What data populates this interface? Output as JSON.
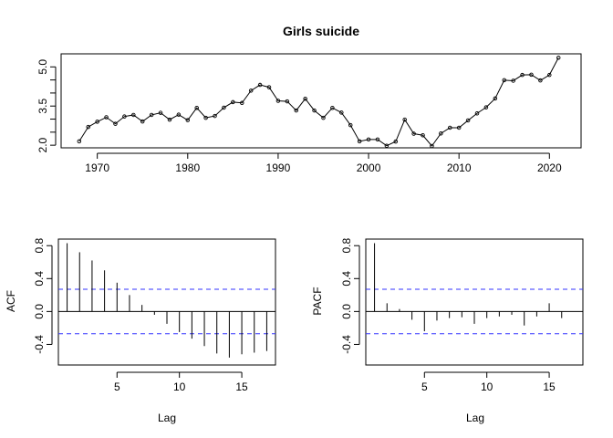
{
  "chart_data": [
    {
      "type": "line",
      "title": "Girls suicide",
      "xlabel": "",
      "ylabel": "",
      "xlim": [
        1966,
        2023.5
      ],
      "ylim": [
        1.9,
        5.5
      ],
      "xticks": [
        1970,
        1980,
        1990,
        2000,
        2010,
        2020
      ],
      "yticks_labeled": [
        2.0,
        3.5,
        5.0
      ],
      "yticks_minor": [
        2.5,
        3.0,
        4.0,
        4.5
      ],
      "x": [
        1968,
        1969,
        1970,
        1971,
        1972,
        1973,
        1974,
        1975,
        1976,
        1977,
        1978,
        1979,
        1980,
        1981,
        1982,
        1983,
        1984,
        1985,
        1986,
        1987,
        1988,
        1989,
        1990,
        1991,
        1992,
        1993,
        1994,
        1995,
        1996,
        1997,
        1998,
        1999,
        2000,
        2001,
        2002,
        2003,
        2004,
        2005,
        2006,
        2007,
        2008,
        2009,
        2010,
        2011,
        2012,
        2013,
        2014,
        2015,
        2016,
        2017,
        2018,
        2019,
        2020,
        2021
      ],
      "values": [
        2.15,
        2.7,
        2.9,
        3.07,
        2.82,
        3.1,
        3.16,
        2.91,
        3.16,
        3.24,
        2.98,
        3.17,
        2.96,
        3.43,
        3.05,
        3.12,
        3.44,
        3.65,
        3.62,
        4.09,
        4.31,
        4.22,
        3.7,
        3.68,
        3.33,
        3.78,
        3.33,
        3.05,
        3.43,
        3.25,
        2.77,
        2.15,
        2.22,
        2.22,
        1.98,
        2.14,
        2.98,
        2.44,
        2.38,
        1.97,
        2.45,
        2.67,
        2.67,
        2.95,
        3.22,
        3.45,
        3.79,
        4.49,
        4.47,
        4.69,
        4.7,
        4.48,
        4.69,
        5.35
      ],
      "grid": false
    },
    {
      "type": "bar",
      "title": "",
      "xlabel": "Lag",
      "ylabel": "ACF",
      "xlim": [
        0.3,
        17.7
      ],
      "ylim": [
        -0.65,
        0.88
      ],
      "xticks": [
        5,
        10,
        15
      ],
      "yticks": [
        -0.4,
        0.0,
        0.4,
        0.8
      ],
      "lags": [
        1,
        2,
        3,
        4,
        5,
        6,
        7,
        8,
        9,
        10,
        11,
        12,
        13,
        14,
        15,
        16,
        17
      ],
      "values": [
        0.83,
        0.72,
        0.62,
        0.5,
        0.35,
        0.2,
        0.08,
        -0.04,
        -0.15,
        -0.25,
        -0.33,
        -0.42,
        -0.51,
        -0.56,
        -0.52,
        -0.5,
        -0.48
      ],
      "ci": 0.27
    },
    {
      "type": "bar",
      "title": "",
      "xlabel": "Lag",
      "ylabel": "PACF",
      "xlim": [
        0.3,
        17.7
      ],
      "ylim": [
        -0.65,
        0.88
      ],
      "xticks": [
        5,
        10,
        15
      ],
      "yticks": [
        -0.4,
        0.0,
        0.4,
        0.8
      ],
      "lags": [
        1,
        2,
        3,
        4,
        5,
        6,
        7,
        8,
        9,
        10,
        11,
        12,
        13,
        14,
        15,
        16
      ],
      "values": [
        0.83,
        0.1,
        0.03,
        -0.1,
        -0.24,
        -0.11,
        -0.08,
        -0.07,
        -0.15,
        -0.08,
        -0.06,
        -0.04,
        -0.17,
        -0.06,
        0.1,
        -0.08
      ],
      "ci": 0.27
    }
  ],
  "style": {
    "line_color": "#000000",
    "ci_color": "#3333ff"
  }
}
